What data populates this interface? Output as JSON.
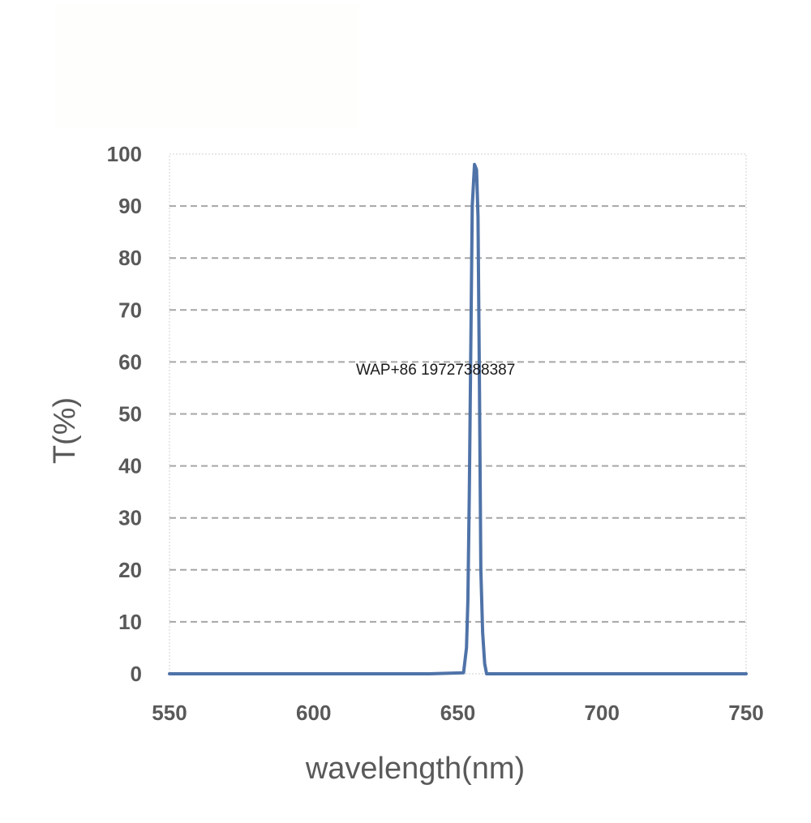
{
  "chart_data": {
    "type": "line",
    "title": "",
    "xlabel": "wavelength(nm)",
    "ylabel": "T(%)",
    "xlim": [
      550,
      750
    ],
    "ylim": [
      0,
      100
    ],
    "x_ticks": [
      "550",
      "600",
      "650",
      "700",
      "750"
    ],
    "y_ticks": [
      "0",
      "10",
      "20",
      "30",
      "40",
      "50",
      "60",
      "70",
      "80",
      "90",
      "100"
    ],
    "grid": "horizontal-dashed",
    "legend": "none",
    "annotation": "WAP+86 19727388387",
    "line_color": "#4f73a8",
    "series": [
      {
        "x": [
          550,
          640,
          652,
          653,
          653.5,
          654,
          655,
          655.8,
          656.5,
          657,
          657.5,
          658,
          658.6,
          659.3,
          660,
          700,
          750
        ],
        "y": [
          0,
          0,
          0.2,
          5,
          14,
          35,
          90,
          98,
          97,
          88,
          55,
          20,
          8,
          2,
          0,
          0,
          0
        ]
      }
    ]
  }
}
